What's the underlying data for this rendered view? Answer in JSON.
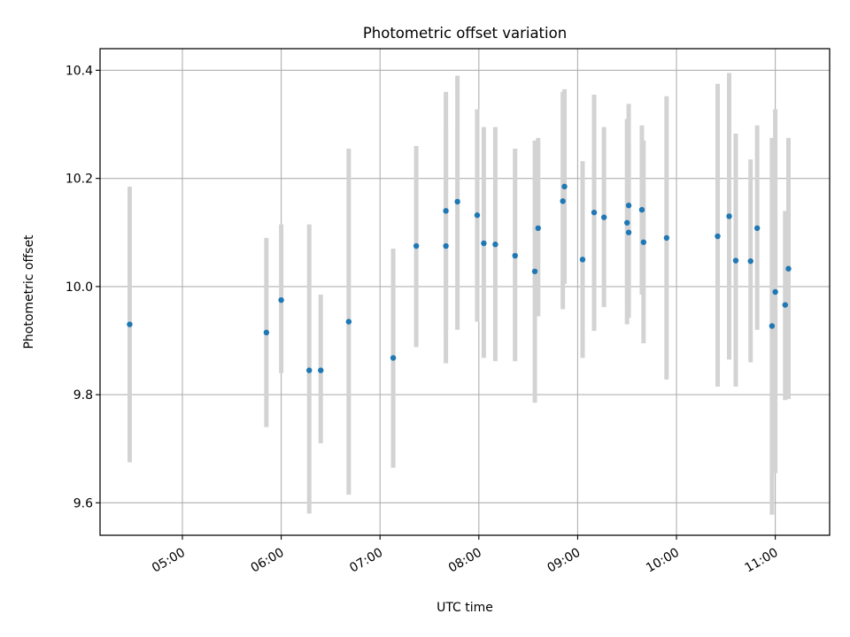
{
  "chart_data": {
    "type": "scatter",
    "title": "Photometric offset variation",
    "xlabel": "UTC time",
    "ylabel": "Photometric offset",
    "xlim": [
      "04:10",
      "11:33"
    ],
    "ylim": [
      9.54,
      10.44
    ],
    "xticks": [
      "05:00",
      "06:00",
      "07:00",
      "08:00",
      "09:00",
      "10:00",
      "11:00"
    ],
    "yticks": [
      9.6,
      9.8,
      10.0,
      10.2,
      10.4
    ],
    "ytick_labels": [
      "9.6",
      "9.8",
      "10.0",
      "10.2",
      "10.4"
    ],
    "grid": true,
    "point_color": "#1f77b4",
    "errorbar_color": "#d3d3d3",
    "points": [
      {
        "x": "04:28",
        "y": 9.93,
        "ylow": 9.675,
        "yhigh": 10.185
      },
      {
        "x": "05:51",
        "y": 9.915,
        "ylow": 9.74,
        "yhigh": 10.09
      },
      {
        "x": "06:00",
        "y": 9.975,
        "ylow": 9.84,
        "yhigh": 10.115
      },
      {
        "x": "06:17",
        "y": 9.845,
        "ylow": 9.58,
        "yhigh": 10.115
      },
      {
        "x": "06:24",
        "y": 9.845,
        "ylow": 9.71,
        "yhigh": 9.985
      },
      {
        "x": "06:41",
        "y": 9.935,
        "ylow": 9.615,
        "yhigh": 10.255
      },
      {
        "x": "07:08",
        "y": 9.868,
        "ylow": 9.665,
        "yhigh": 10.07
      },
      {
        "x": "07:22",
        "y": 10.075,
        "ylow": 9.888,
        "yhigh": 10.26
      },
      {
        "x": "07:40",
        "y": 10.075,
        "ylow": 9.858,
        "yhigh": 10.295
      },
      {
        "x": "07:40",
        "y": 10.14,
        "ylow": 9.92,
        "yhigh": 10.36
      },
      {
        "x": "07:47",
        "y": 10.157,
        "ylow": 9.92,
        "yhigh": 10.39
      },
      {
        "x": "07:59",
        "y": 10.132,
        "ylow": 9.935,
        "yhigh": 10.328
      },
      {
        "x": "08:03",
        "y": 10.08,
        "ylow": 9.868,
        "yhigh": 10.295
      },
      {
        "x": "08:10",
        "y": 10.078,
        "ylow": 9.862,
        "yhigh": 10.295
      },
      {
        "x": "08:22",
        "y": 10.057,
        "ylow": 9.862,
        "yhigh": 10.255
      },
      {
        "x": "08:34",
        "y": 10.028,
        "ylow": 9.785,
        "yhigh": 10.27
      },
      {
        "x": "08:36",
        "y": 10.108,
        "ylow": 9.945,
        "yhigh": 10.275
      },
      {
        "x": "08:51",
        "y": 10.158,
        "ylow": 9.958,
        "yhigh": 10.36
      },
      {
        "x": "08:52",
        "y": 10.185,
        "ylow": 10.005,
        "yhigh": 10.365
      },
      {
        "x": "09:03",
        "y": 10.05,
        "ylow": 9.868,
        "yhigh": 10.232
      },
      {
        "x": "09:10",
        "y": 10.137,
        "ylow": 9.918,
        "yhigh": 10.355
      },
      {
        "x": "09:16",
        "y": 10.128,
        "ylow": 9.962,
        "yhigh": 10.295
      },
      {
        "x": "09:30",
        "y": 10.118,
        "ylow": 9.93,
        "yhigh": 10.31
      },
      {
        "x": "09:31",
        "y": 10.15,
        "ylow": 9.96,
        "yhigh": 10.338
      },
      {
        "x": "09:31",
        "y": 10.1,
        "ylow": 9.942,
        "yhigh": 10.26
      },
      {
        "x": "09:39",
        "y": 10.142,
        "ylow": 9.985,
        "yhigh": 10.298
      },
      {
        "x": "09:40",
        "y": 10.082,
        "ylow": 9.895,
        "yhigh": 10.27
      },
      {
        "x": "09:54",
        "y": 10.09,
        "ylow": 9.828,
        "yhigh": 10.352
      },
      {
        "x": "10:25",
        "y": 10.093,
        "ylow": 9.815,
        "yhigh": 10.375
      },
      {
        "x": "10:32",
        "y": 10.13,
        "ylow": 9.865,
        "yhigh": 10.395
      },
      {
        "x": "10:36",
        "y": 10.048,
        "ylow": 9.815,
        "yhigh": 10.283
      },
      {
        "x": "10:45",
        "y": 10.047,
        "ylow": 9.86,
        "yhigh": 10.235
      },
      {
        "x": "10:49",
        "y": 10.108,
        "ylow": 9.92,
        "yhigh": 10.298
      },
      {
        "x": "10:58",
        "y": 9.927,
        "ylow": 9.578,
        "yhigh": 10.275
      },
      {
        "x": "11:00",
        "y": 9.99,
        "ylow": 9.655,
        "yhigh": 10.328
      },
      {
        "x": "11:06",
        "y": 9.966,
        "ylow": 9.79,
        "yhigh": 10.14
      },
      {
        "x": "11:08",
        "y": 10.033,
        "ylow": 9.792,
        "yhigh": 10.275
      }
    ]
  }
}
